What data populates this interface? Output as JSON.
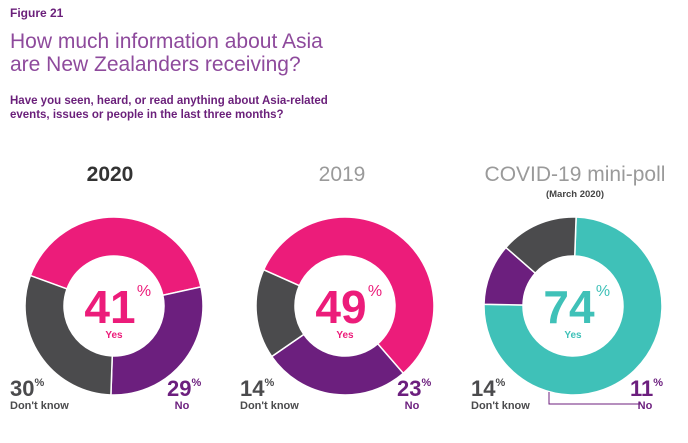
{
  "figure_label": "Figure 21",
  "title_line1": "How much information about Asia",
  "title_line2": "are New Zealanders receiving?",
  "subtitle_line1": "Have you seen, heard, or read anything about Asia-related",
  "subtitle_line2": "events, issues or people in the last three months?",
  "colors": {
    "yes": "#ec1c7a",
    "no": "#6c1f7e",
    "dont_know": "#4b4b4d",
    "covid_yes": "#3fc1b8"
  },
  "chart_data": [
    {
      "type": "pie",
      "title": "2020",
      "subtitle": "",
      "slices": [
        {
          "label": "Yes",
          "value": 41
        },
        {
          "label": "No",
          "value": 29
        },
        {
          "label": "Don't know",
          "value": 30
        }
      ],
      "yes_color": "#ec1c7a",
      "title_color": "#333333",
      "title_weight": "bold"
    },
    {
      "type": "pie",
      "title": "2019",
      "subtitle": "",
      "slices": [
        {
          "label": "Yes",
          "value": 49
        },
        {
          "label": "No",
          "value": 23
        },
        {
          "label": "Don't know",
          "value": 14
        }
      ],
      "yes_color": "#ec1c7a",
      "title_color": "#9a9a9a",
      "title_weight": "normal"
    },
    {
      "type": "pie",
      "title": "COVID-19 mini-poll",
      "subtitle": "(March 2020)",
      "slices": [
        {
          "label": "Yes",
          "value": 74
        },
        {
          "label": "No",
          "value": 11
        },
        {
          "label": "Don't know",
          "value": 14
        }
      ],
      "yes_color": "#3fc1b8",
      "title_color": "#9a9a9a",
      "title_weight": "normal"
    }
  ]
}
